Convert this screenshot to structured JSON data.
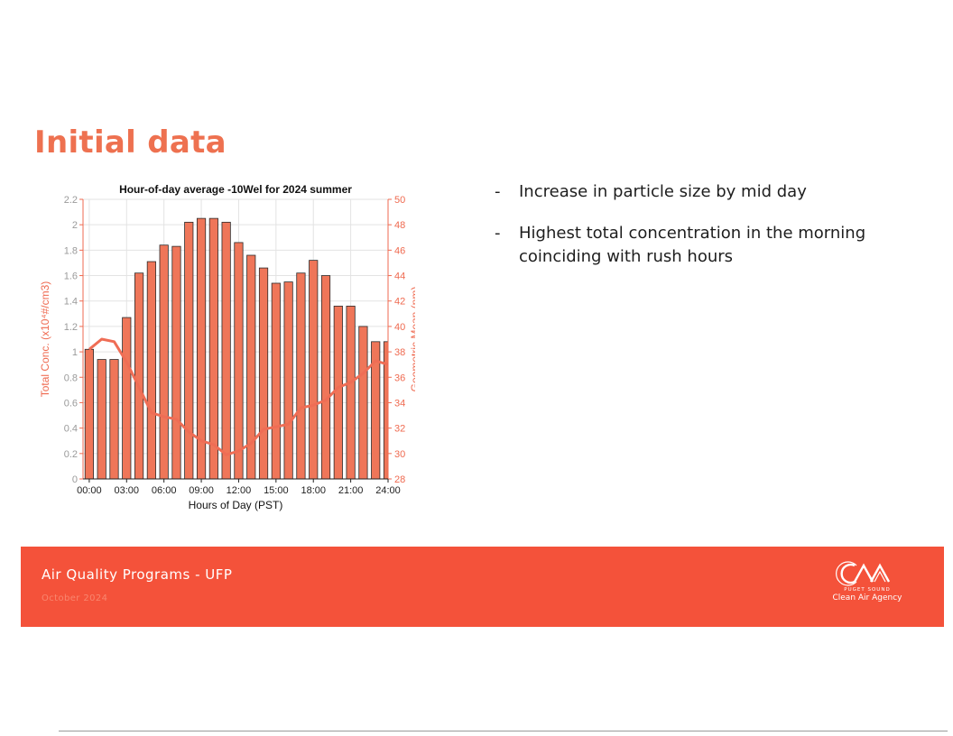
{
  "slide": {
    "title": "Initial data",
    "bullets": [
      "Increase in particle size by mid day",
      "Highest total concentration in the morning coinciding with rush hours"
    ],
    "bullet_marker": "-"
  },
  "footer": {
    "program": "Air Quality Programs - UFP",
    "date": "October 2024",
    "logo_small": "PUGET SOUND",
    "logo_agency": "Clean Air Agency"
  },
  "colors": {
    "accent": "#ef5a3c",
    "title": "#ee7150",
    "footer_bg": "#f4523a",
    "footer_date": "#f9866f",
    "bar_fill": "#ef7659",
    "bar_stroke": "#2b2b2b",
    "line": "#ef6d55",
    "axis_label": "#ef6a50"
  },
  "chart_data": {
    "type": "bar",
    "title": "Hour-of-day average -10Wel for 2024 summer",
    "xlabel": "Hours of Day (PST)",
    "ylabel_left": "Total Conc. (x10⁴#/cm3)",
    "ylabel_right": "Geometric Mean (nm)",
    "x_ticks": [
      "00:00",
      "03:00",
      "06:00",
      "09:00",
      "12:00",
      "15:00",
      "18:00",
      "21:00",
      "24:00"
    ],
    "xlim": [
      -0.5,
      24
    ],
    "ylim_left": [
      0,
      2.2
    ],
    "ylim_right": [
      28,
      50
    ],
    "yticks_left": [
      "0",
      "0.2",
      "0.4",
      "0.6",
      "0.8",
      "1",
      "1.2",
      "1.4",
      "1.6",
      "1.8",
      "2",
      "2.2"
    ],
    "yticks_right": [
      "28",
      "30",
      "32",
      "34",
      "36",
      "38",
      "40",
      "42",
      "44",
      "46",
      "48",
      "50"
    ],
    "grid": true,
    "series": [
      {
        "axis": "left",
        "kind": "bar",
        "x": [
          0,
          1,
          2,
          3,
          4,
          5,
          6,
          7,
          8,
          9,
          10,
          11,
          12,
          13,
          14,
          15,
          16,
          17,
          18,
          19,
          20,
          21,
          22,
          23,
          24
        ],
        "values": [
          1.02,
          0.94,
          0.94,
          1.27,
          1.62,
          1.71,
          1.84,
          1.83,
          2.02,
          2.05,
          2.05,
          2.02,
          1.86,
          1.76,
          1.66,
          1.54,
          1.55,
          1.62,
          1.72,
          1.6,
          1.36,
          1.36,
          1.2,
          1.08,
          1.08
        ]
      },
      {
        "axis": "right",
        "kind": "line",
        "x": [
          0,
          1,
          2,
          3,
          4,
          5,
          6,
          7,
          8,
          9,
          10,
          11,
          12,
          13,
          14,
          15,
          16,
          17,
          18,
          19,
          20,
          21,
          22,
          23,
          24
        ],
        "values": [
          38.2,
          39.0,
          38.8,
          37.2,
          35.2,
          33.2,
          32.9,
          32.7,
          31.7,
          31.0,
          30.7,
          29.9,
          30.2,
          30.8,
          31.9,
          32.1,
          32.3,
          33.6,
          33.8,
          34.2,
          35.2,
          35.6,
          36.3,
          37.3,
          37.0
        ]
      }
    ]
  }
}
